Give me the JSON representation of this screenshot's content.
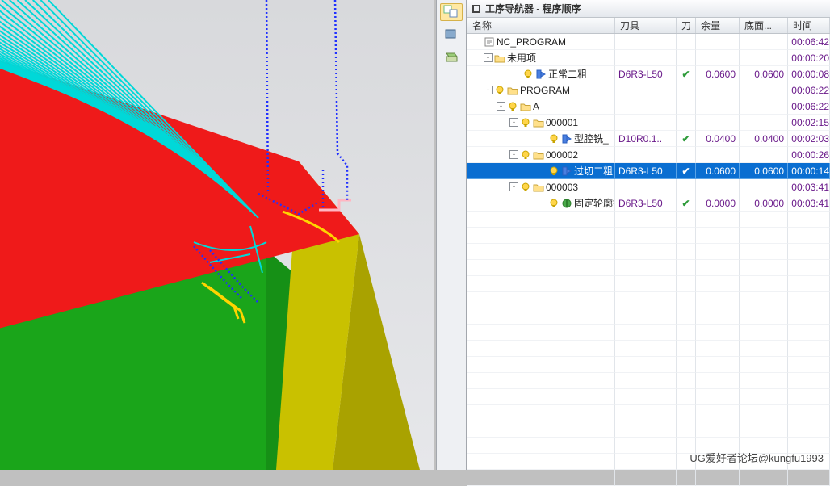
{
  "watermark": "UG爱好者论坛@kungfu1993",
  "panel": {
    "title": "工序导航器 - 程序顺序"
  },
  "columns": {
    "name": "名称",
    "tool": "刀具",
    "toolchg": "刀",
    "remain": "余量",
    "bottom": "底面...",
    "time": "时间"
  },
  "rows": [
    {
      "indent": 0,
      "twist": "",
      "icons": [
        "prog"
      ],
      "label": "NC_PROGRAM",
      "tool": "",
      "chk": "",
      "rem": "",
      "bot": "",
      "time": "00:06:42",
      "sel": false
    },
    {
      "indent": 1,
      "twist": "-",
      "icons": [
        "folder"
      ],
      "label": "未用项",
      "tool": "",
      "chk": "",
      "rem": "",
      "bot": "",
      "time": "00:00:20",
      "sel": false
    },
    {
      "indent": 3,
      "twist": "",
      "icons": [
        "bulb",
        "op-blue"
      ],
      "label": "正常二粗",
      "tool": "D6R3-L50",
      "chk": "✔",
      "rem": "0.0600",
      "bot": "0.0600",
      "time": "00:00:08",
      "sel": false
    },
    {
      "indent": 1,
      "twist": "-",
      "icons": [
        "bulb",
        "folder"
      ],
      "label": "PROGRAM",
      "tool": "",
      "chk": "",
      "rem": "",
      "bot": "",
      "time": "00:06:22",
      "sel": false
    },
    {
      "indent": 2,
      "twist": "-",
      "icons": [
        "bulb",
        "folder"
      ],
      "label": "A",
      "tool": "",
      "chk": "",
      "rem": "",
      "bot": "",
      "time": "00:06:22",
      "sel": false
    },
    {
      "indent": 3,
      "twist": "-",
      "icons": [
        "bulb",
        "folder"
      ],
      "label": "000001",
      "tool": "",
      "chk": "",
      "rem": "",
      "bot": "",
      "time": "00:02:15",
      "sel": false
    },
    {
      "indent": 5,
      "twist": "",
      "icons": [
        "bulb",
        "op-blue"
      ],
      "label": "型腔铣_",
      "tool": "D10R0.1..",
      "chk": "✔",
      "rem": "0.0400",
      "bot": "0.0400",
      "time": "00:02:03",
      "sel": false
    },
    {
      "indent": 3,
      "twist": "-",
      "icons": [
        "bulb",
        "folder"
      ],
      "label": "000002",
      "tool": "",
      "chk": "",
      "rem": "",
      "bot": "",
      "time": "00:00:26",
      "sel": false
    },
    {
      "indent": 5,
      "twist": "",
      "icons": [
        "bulb",
        "op-blue"
      ],
      "label": "过切二粗",
      "tool": "D6R3-L50",
      "chk": "✔",
      "rem": "0.0600",
      "bot": "0.0600",
      "time": "00:00:14",
      "sel": true
    },
    {
      "indent": 3,
      "twist": "-",
      "icons": [
        "bulb",
        "folder"
      ],
      "label": "000003",
      "tool": "",
      "chk": "",
      "rem": "",
      "bot": "",
      "time": "00:03:41",
      "sel": false
    },
    {
      "indent": 5,
      "twist": "",
      "icons": [
        "bulb",
        "op-green"
      ],
      "label": "固定轮廓铣",
      "tool": "D6R3-L50",
      "chk": "✔",
      "rem": "0.0000",
      "bot": "0.0000",
      "time": "00:03:41",
      "sel": false
    }
  ],
  "model": {
    "colors": {
      "top": "#ef1a1a",
      "side": "#c9c100",
      "front": "#1aa51a",
      "toolpath_cyan": "#00d8d8",
      "toolpath_blue": "#2030ff",
      "toolpath_yellow": "#ffd400",
      "toolpath_pink": "#ffb6c1",
      "bg_top": "#d8d9dc",
      "bg_bot": "#e6e7ea"
    },
    "faces": {
      "top": "-220,0 370,200 445,290 -90,430",
      "side": "370,200 445,290 412,582 342,582 370,200",
      "side2": "445,290 412,582 520,582",
      "front": "-90,430 330,310 330,582 -90,582",
      "front2": "330,310 412,378 412,582 330,582"
    }
  }
}
